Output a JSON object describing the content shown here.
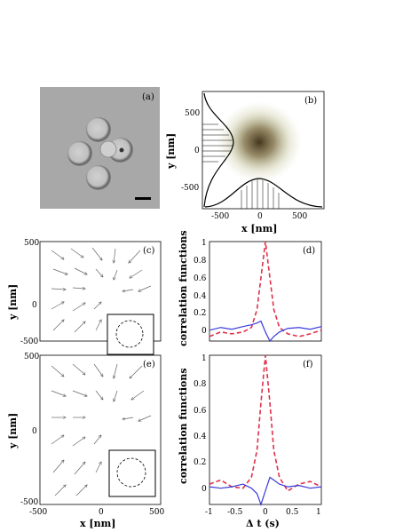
{
  "panels": {
    "a": {
      "tag": "(a)"
    },
    "b": {
      "tag": "(b)",
      "xlabel": "x [nm]",
      "ylabel": "y [nm]",
      "xticks": [
        "-500",
        "0",
        "500"
      ],
      "yticks": [
        "500",
        "0",
        "-500"
      ]
    },
    "c": {
      "tag": "(c)",
      "ylabel": "y [nm]",
      "yticks": [
        "500",
        "0",
        "-500"
      ]
    },
    "d": {
      "tag": "(d)",
      "ylabel": "correlation functions",
      "yticks": [
        "1",
        "0.8",
        "0.6",
        "0.4",
        "0.2",
        "0"
      ]
    },
    "e": {
      "tag": "(e)",
      "xlabel": "x [nm]",
      "ylabel": "y [nm]",
      "xticks": [
        "-500",
        "0",
        "500"
      ],
      "yticks": [
        "500",
        "0",
        "-500"
      ]
    },
    "f": {
      "tag": "(f)",
      "xlabel": "Δ t (s)",
      "ylabel": "correlation functions",
      "xticks": [
        "-1",
        "-0.5",
        "0",
        "0.5",
        "1"
      ],
      "yticks": [
        "1",
        "0.8",
        "0.6",
        "0.4",
        "0.2",
        "0"
      ]
    }
  },
  "colors": {
    "red_dashed": "#e0304a",
    "blue": "#3a3adc",
    "scatter": "#6b5a2a",
    "photo_bg": "#a9a9a9"
  },
  "chart_data": [
    {
      "type": "line",
      "panel": "d",
      "x": [
        -1,
        -0.8,
        -0.6,
        -0.4,
        -0.25,
        -0.15,
        -0.08,
        0,
        0.08,
        0.15,
        0.25,
        0.4,
        0.6,
        0.8,
        1
      ],
      "series": [
        {
          "values": [
            -0.05,
            0,
            -0.02,
            0.0,
            0.05,
            0.25,
            0.6,
            1.0,
            0.6,
            0.25,
            0.05,
            -0.02,
            -0.05,
            -0.02,
            0.02
          ],
          "style": "dashed",
          "color": "red"
        },
        {
          "values": [
            0.02,
            0.05,
            0.03,
            0.06,
            0.08,
            0.1,
            0.12,
            0.0,
            -0.1,
            -0.05,
            0.0,
            0.04,
            0.05,
            0.03,
            0.06
          ],
          "style": "solid",
          "color": "blue"
        }
      ],
      "ylim": [
        -0.1,
        1
      ]
    },
    {
      "type": "line",
      "panel": "f",
      "x": [
        -1,
        -0.8,
        -0.6,
        -0.4,
        -0.25,
        -0.15,
        -0.08,
        0,
        0.08,
        0.15,
        0.25,
        0.4,
        0.6,
        0.8,
        1
      ],
      "series": [
        {
          "values": [
            0.05,
            0.08,
            0.03,
            0.02,
            0.1,
            0.3,
            0.65,
            1.0,
            0.65,
            0.3,
            0.1,
            0.0,
            0.05,
            0.07,
            0.03
          ],
          "style": "dashed",
          "color": "red"
        },
        {
          "values": [
            0.03,
            0.02,
            0.03,
            0.05,
            0.02,
            -0.02,
            -0.1,
            0.0,
            0.1,
            0.08,
            0.05,
            0.03,
            0.04,
            0.02,
            0.03
          ],
          "style": "solid",
          "color": "blue"
        }
      ],
      "ylim": [
        -0.1,
        1
      ]
    }
  ]
}
